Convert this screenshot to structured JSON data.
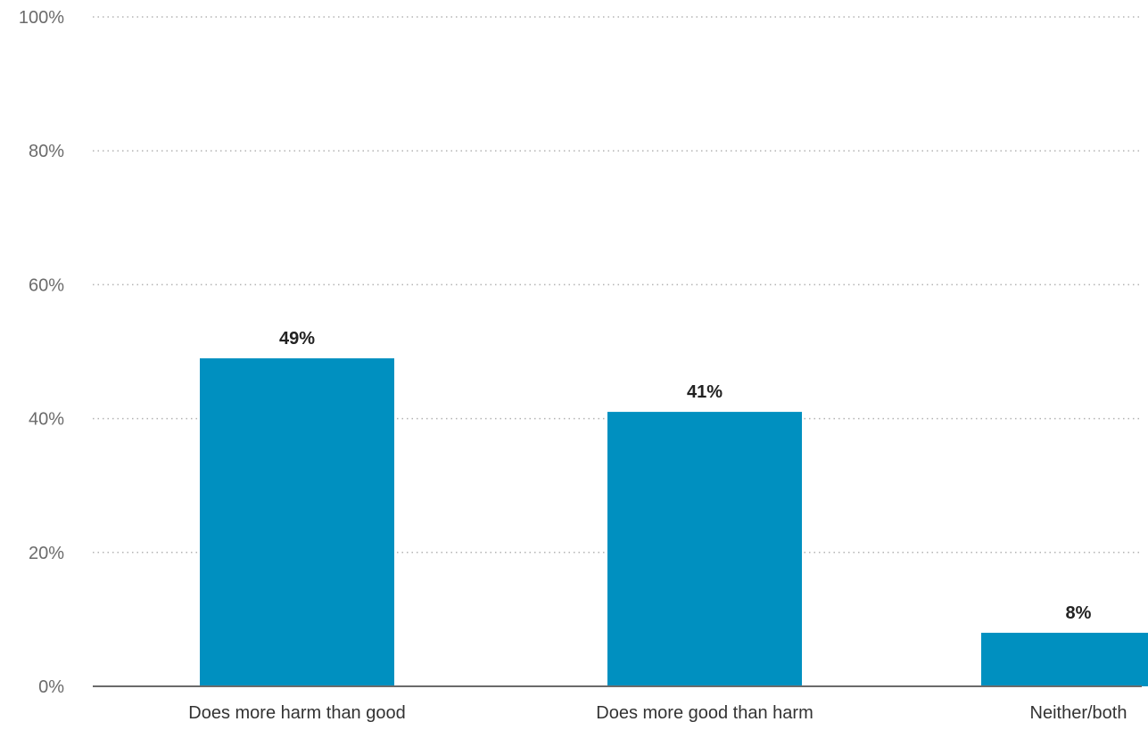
{
  "chart_data": {
    "type": "bar",
    "categories": [
      "Does more harm than good",
      "Does more good than harm",
      "Neither/both"
    ],
    "values": [
      49,
      41,
      8
    ],
    "value_labels": [
      "49%",
      "41%",
      "8%"
    ],
    "title": "",
    "xlabel": "",
    "ylabel": "",
    "ylim": [
      0,
      100
    ],
    "yticks": [
      0,
      20,
      40,
      60,
      80,
      100
    ],
    "ytick_labels": [
      "0%",
      "20%",
      "40%",
      "60%",
      "80%",
      "100%"
    ],
    "grid": true,
    "legend": "none",
    "bar_color": "#0090C0"
  }
}
